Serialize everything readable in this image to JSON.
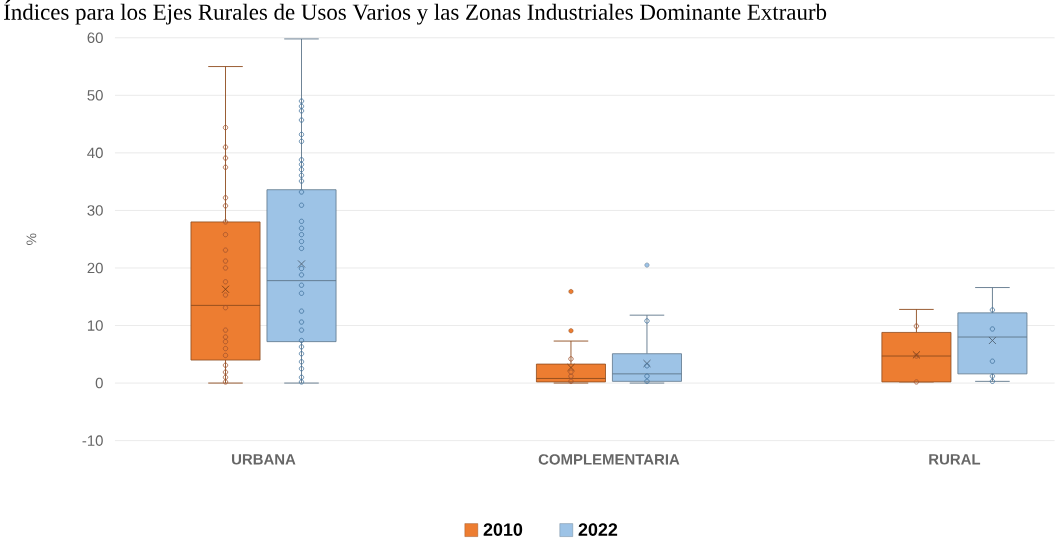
{
  "chart_data": {
    "type": "box",
    "title": "Índices para los Ejes Rurales de Usos Varios y las Zonas Industriales Dominante Extraurb",
    "ylabel": "%",
    "categories": [
      "URBANA",
      "COMPLEMENTARIA",
      "RURAL"
    ],
    "ylim": [
      -10,
      60
    ],
    "yticks": [
      -10,
      0,
      10,
      20,
      30,
      40,
      50,
      60
    ],
    "grid": "y",
    "legend": "bottom",
    "series": [
      {
        "name": "2010",
        "color": "#ed7d31",
        "boxes": [
          {
            "low": 0,
            "q1": 4,
            "median": 13.5,
            "q3": 28,
            "high": 55,
            "mean": 16.3
          },
          {
            "low": 0,
            "q1": 0.2,
            "median": 0.8,
            "q3": 3.3,
            "high": 7.3,
            "mean": 2.7,
            "outliers": [
              15.9,
              9.1
            ]
          },
          {
            "low": 0.2,
            "q1": 0.2,
            "median": 4.7,
            "q3": 8.8,
            "high": 12.8,
            "mean": 4.9
          }
        ]
      },
      {
        "name": "2022",
        "color": "#9dc3e6",
        "boxes": [
          {
            "low": 0,
            "q1": 7.2,
            "median": 17.8,
            "q3": 33.6,
            "high": 59.8,
            "mean": 20.7
          },
          {
            "low": 0,
            "q1": 0.3,
            "median": 1.6,
            "q3": 5.1,
            "high": 11.8,
            "mean": 3.4,
            "outliers": [
              20.5
            ]
          },
          {
            "low": 0.3,
            "q1": 1.6,
            "median": 8,
            "q3": 12.2,
            "high": 16.6,
            "mean": 7.4
          }
        ]
      },
      {
        "type": "scatter",
        "color": "#a0522d",
        "marker": "circle",
        "x": [
          "URBANA",
          "URBANA",
          "URBANA",
          "URBANA",
          "URBANA",
          "URBANA",
          "URBANA",
          "URBANA",
          "URBANA",
          "URBANA",
          "URBANA",
          "URBANA",
          "URBANA",
          "URBANA",
          "URBANA",
          "URBANA",
          "URBANA",
          "URBANA",
          "URBANA",
          "URBANA",
          "URBANA",
          "URBANA",
          "URBANA",
          "COMPLEMENTARIA",
          "COMPLEMENTARIA",
          "COMPLEMENTARIA",
          "COMPLEMENTARIA",
          "RURAL",
          "RURAL",
          "RURAL"
        ],
        "values": [
          44.4,
          41,
          39.1,
          37.5,
          32.2,
          30.8,
          28,
          25.8,
          23.1,
          21.2,
          20,
          17.6,
          15.3,
          13.1,
          9.2,
          8,
          7.2,
          6,
          4.8,
          3.1,
          1.9,
          1,
          0.2,
          4.2,
          1.9,
          1.2,
          0.3,
          9.9,
          4.7,
          0.2
        ]
      },
      {
        "type": "scatter",
        "color": "#41719c",
        "marker": "circle",
        "x": [
          "URBANA",
          "URBANA",
          "URBANA",
          "URBANA",
          "URBANA",
          "URBANA",
          "URBANA",
          "URBANA",
          "URBANA",
          "URBANA",
          "URBANA",
          "URBANA",
          "URBANA",
          "URBANA",
          "URBANA",
          "URBANA",
          "URBANA",
          "URBANA",
          "URBANA",
          "URBANA",
          "URBANA",
          "URBANA",
          "URBANA",
          "URBANA",
          "URBANA",
          "URBANA",
          "URBANA",
          "URBANA",
          "URBANA",
          "URBANA",
          "URBANA",
          "URBANA",
          "COMPLEMENTARIA",
          "COMPLEMENTARIA",
          "COMPLEMENTARIA",
          "COMPLEMENTARIA",
          "RURAL",
          "RURAL",
          "RURAL",
          "RURAL",
          "RURAL"
        ],
        "values": [
          49,
          48.1,
          47.3,
          45.7,
          43.2,
          42,
          38.8,
          38,
          37.1,
          36.1,
          35.1,
          33.2,
          30.9,
          28.1,
          26.9,
          25.8,
          24.6,
          23.4,
          19.9,
          18.8,
          17,
          15.6,
          12.5,
          10.6,
          9.2,
          7.4,
          6.3,
          5.1,
          3.7,
          2.5,
          1,
          0.2,
          10.8,
          3,
          1.2,
          0.3,
          12.7,
          9.4,
          3.8,
          1.2,
          0.3
        ]
      }
    ]
  }
}
